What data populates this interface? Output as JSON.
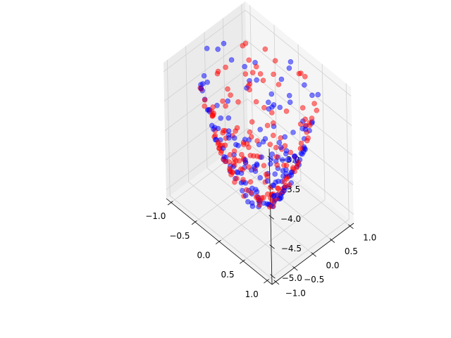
{
  "chart_data": {
    "type": "scatter",
    "projection": "3d",
    "title": "",
    "xlabel": "",
    "ylabel": "",
    "zlabel": "",
    "xlim": [
      -1.1,
      1.1
    ],
    "ylim": [
      -1.1,
      1.1
    ],
    "zlim": [
      -5.15,
      -2.85
    ],
    "x_ticks": [
      -1.0,
      -0.5,
      0.0,
      0.5,
      1.0
    ],
    "y_ticks": [
      -1.0,
      -0.5,
      0.0,
      0.5,
      1.0
    ],
    "z_ticks": [
      -5.0,
      -4.5,
      -4.0,
      -3.5,
      -3.0
    ],
    "x_tick_labels": [
      "−1.0",
      "−0.5",
      "0.0",
      "0.5",
      "1.0"
    ],
    "y_tick_labels": [
      "−1.0",
      "−0.5",
      "0.0",
      "0.5",
      "1.0"
    ],
    "z_tick_labels": [
      "−5.0",
      "−4.5",
      "−4.0",
      "−3.5",
      "−3.0"
    ],
    "grid": true,
    "legend": "none",
    "description_of_data": "Two overlapping point clouds sampled on a bowl-shaped (paraboloid-like) surface z ≈ -5 + 2(x²+y²)",
    "series": [
      {
        "color": "#0000ff",
        "alpha": 0.5,
        "marker": "o"
      },
      {
        "color": "#ff0000",
        "alpha": 0.5,
        "marker": "o"
      }
    ]
  }
}
